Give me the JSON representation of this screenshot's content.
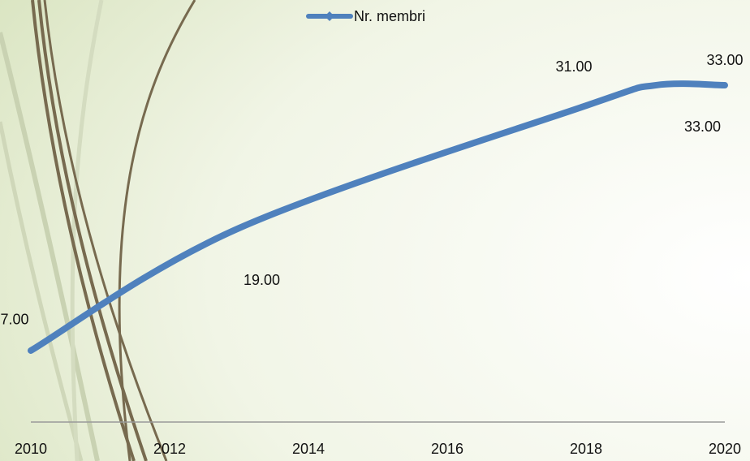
{
  "chart_data": {
    "type": "line",
    "x": [
      2010,
      2013,
      2018,
      2019,
      2020
    ],
    "xlim": [
      2010,
      2020
    ],
    "xticks": [
      2010,
      2012,
      2014,
      2016,
      2018,
      2020
    ],
    "ylim": [
      0,
      40
    ],
    "series": [
      {
        "name": "Nr. membri",
        "color": "#4f81bd",
        "values": [
          7,
          19,
          31,
          33,
          33
        ],
        "value_labels": [
          "7.00",
          "19.00",
          "31.00",
          "33.00",
          "33.00"
        ]
      }
    ],
    "legend": "top",
    "smooth": true
  }
}
